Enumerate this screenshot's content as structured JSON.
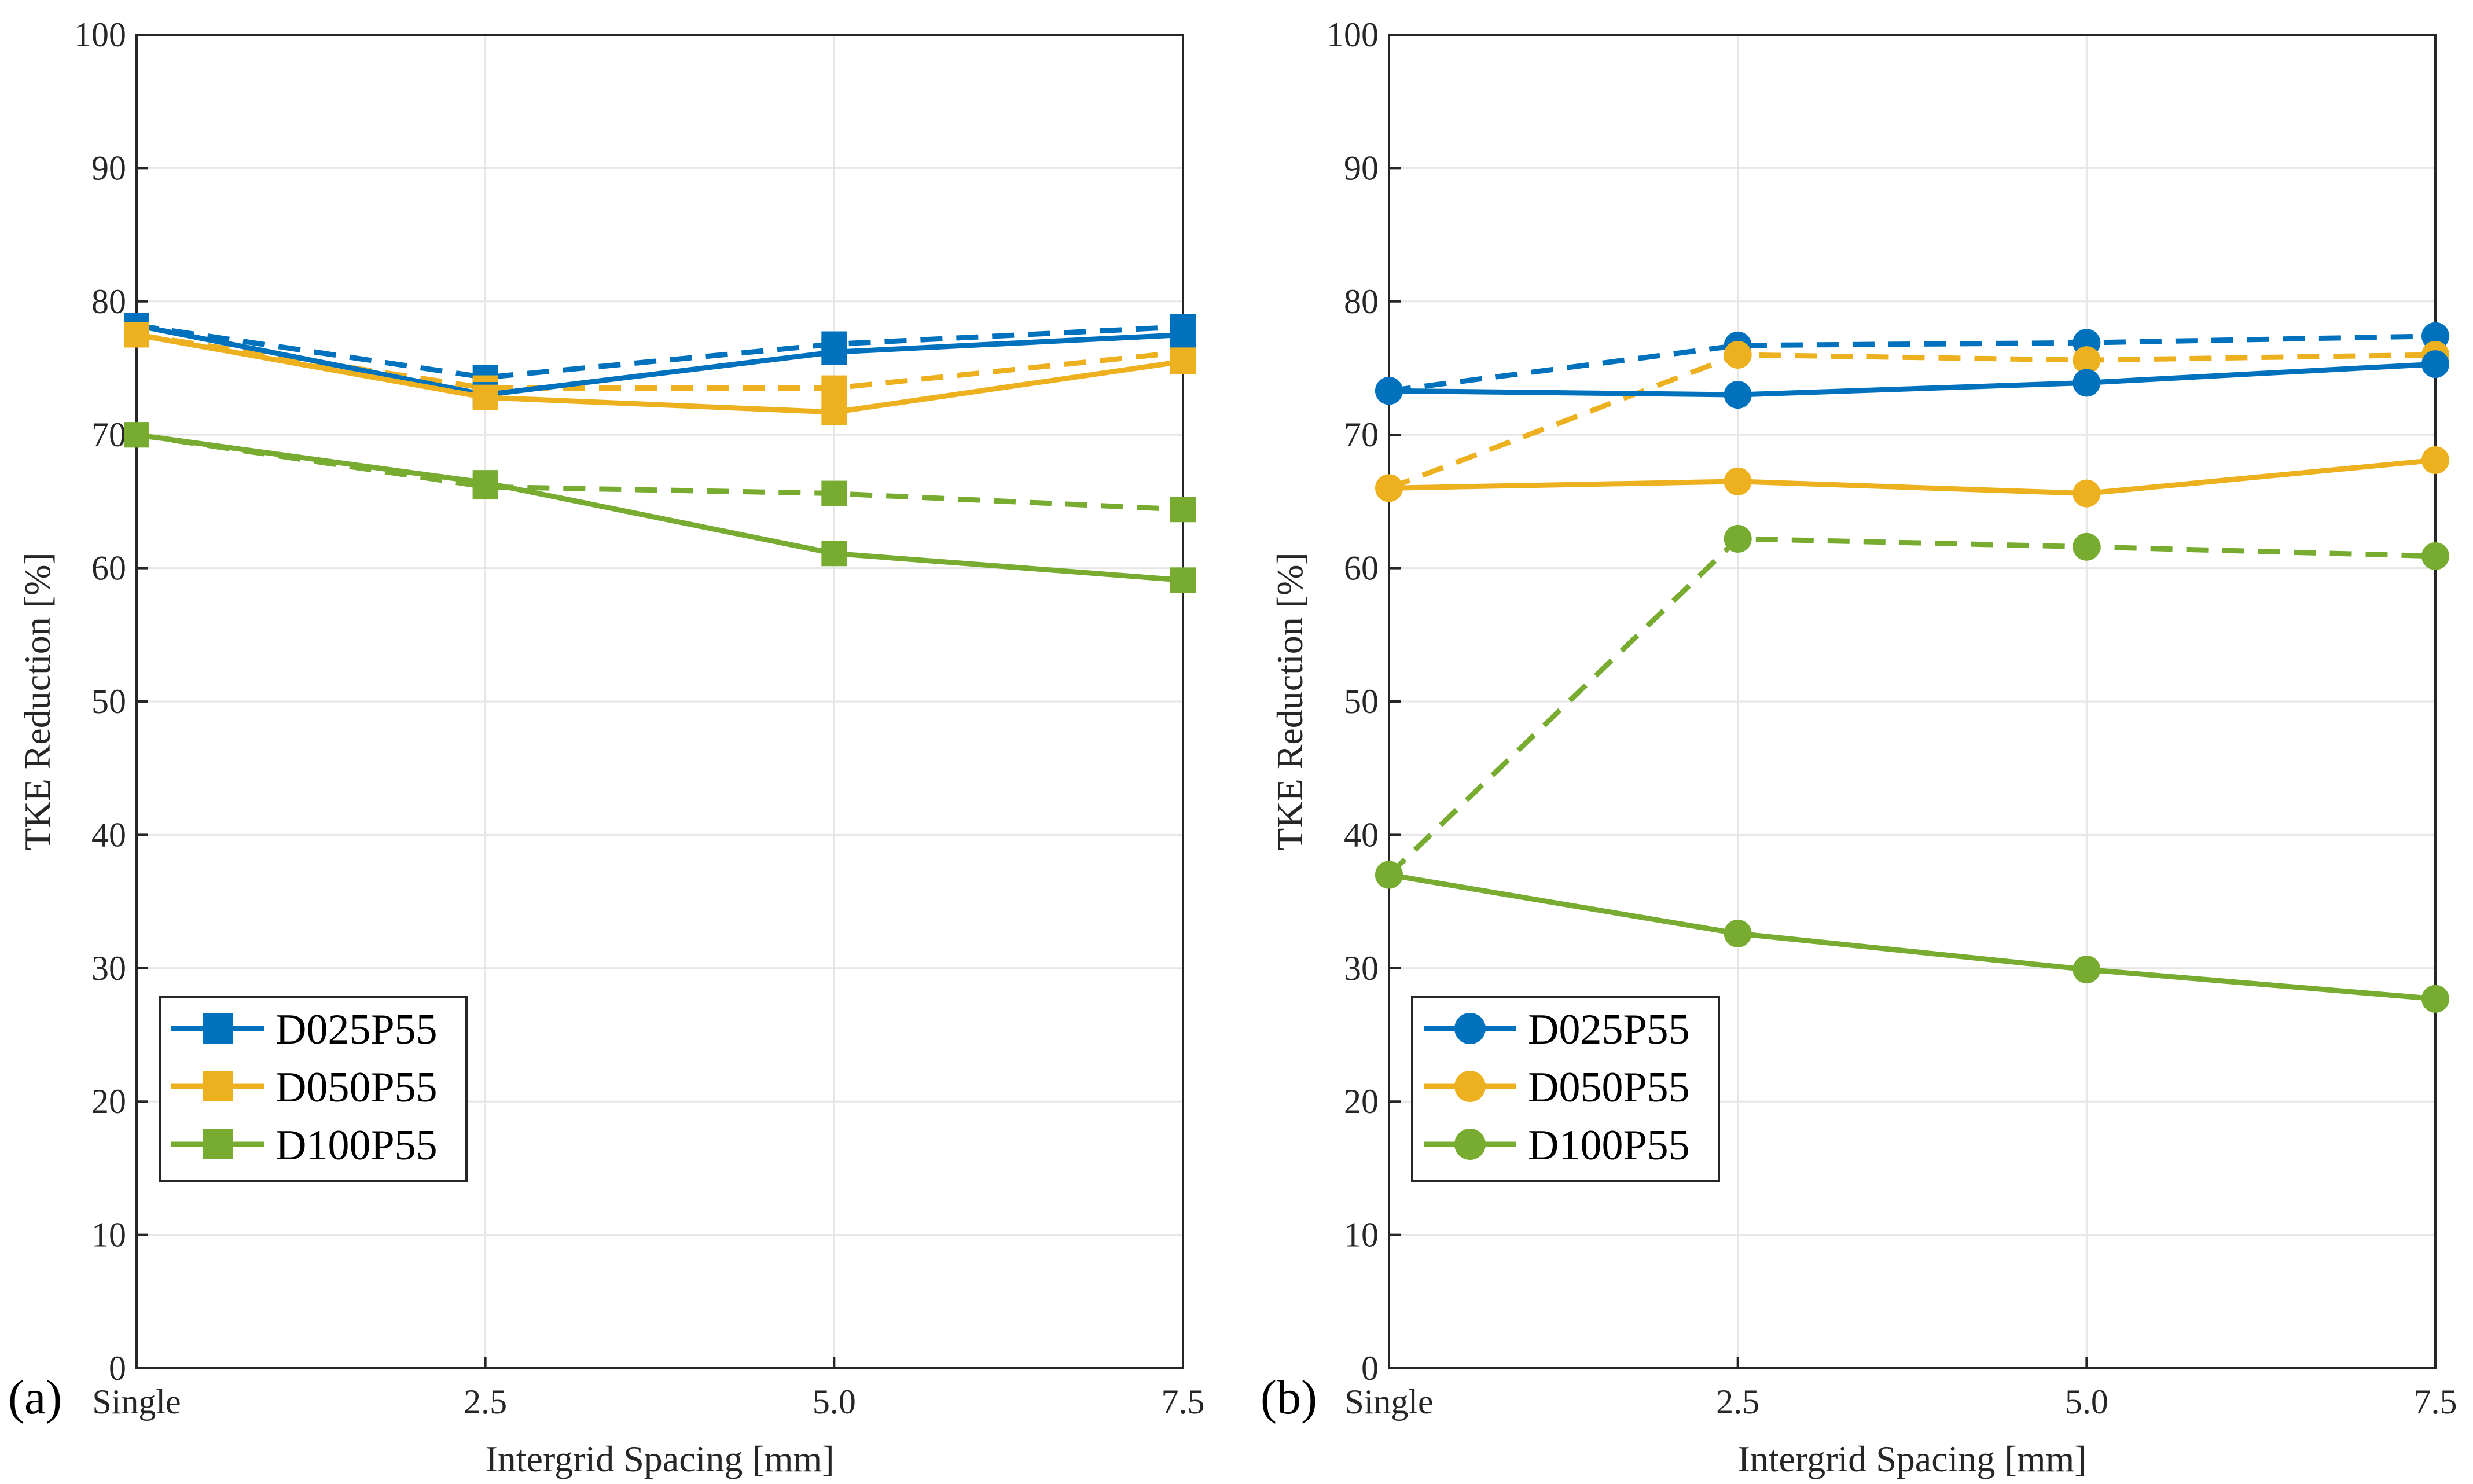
{
  "chart_data": [
    {
      "type": "line",
      "panel_label": "(a)",
      "marker": "square",
      "xlabel": "Intergrid Spacing [mm]",
      "ylabel": "TKE Reduction [%]",
      "categories": [
        "Single",
        "2.5",
        "5.0",
        "7.5"
      ],
      "ylim": [
        0,
        100
      ],
      "yticks": [
        "0",
        "10",
        "20",
        "30",
        "40",
        "50",
        "60",
        "70",
        "80",
        "90",
        "100"
      ],
      "grid": true,
      "legend_position": "bottom-left",
      "series": [
        {
          "name": "D025P55",
          "color": "#0072BD",
          "style": "solid",
          "values": [
            78.2,
            73.0,
            76.2,
            77.5
          ]
        },
        {
          "name": "D025P55",
          "color": "#0072BD",
          "style": "dashed",
          "values": [
            78.2,
            74.3,
            76.8,
            78.1
          ]
        },
        {
          "name": "D050P55",
          "color": "#EDB120",
          "style": "solid",
          "values": [
            77.5,
            72.8,
            71.7,
            75.5
          ]
        },
        {
          "name": "D050P55",
          "color": "#EDB120",
          "style": "dashed",
          "values": [
            77.5,
            73.5,
            73.5,
            76.2
          ]
        },
        {
          "name": "D100P55",
          "color": "#77AC30",
          "style": "solid",
          "values": [
            70.0,
            66.4,
            61.1,
            59.1
          ]
        },
        {
          "name": "D100P55",
          "color": "#77AC30",
          "style": "dashed",
          "values": [
            70.0,
            66.1,
            65.6,
            64.4
          ]
        }
      ],
      "legend": [
        {
          "label": "D025P55",
          "color": "#0072BD"
        },
        {
          "label": "D050P55",
          "color": "#EDB120"
        },
        {
          "label": "D100P55",
          "color": "#77AC30"
        }
      ]
    },
    {
      "type": "line",
      "panel_label": "(b)",
      "marker": "circle",
      "xlabel": "Intergrid Spacing [mm]",
      "ylabel": "TKE Reduction [%]",
      "categories": [
        "Single",
        "2.5",
        "5.0",
        "7.5"
      ],
      "ylim": [
        0,
        100
      ],
      "yticks": [
        "0",
        "10",
        "20",
        "30",
        "40",
        "50",
        "60",
        "70",
        "80",
        "90",
        "100"
      ],
      "grid": true,
      "legend_position": "bottom-left",
      "series": [
        {
          "name": "D025P55",
          "color": "#0072BD",
          "style": "solid",
          "values": [
            73.3,
            73.0,
            73.9,
            75.3
          ]
        },
        {
          "name": "D025P55",
          "color": "#0072BD",
          "style": "dashed",
          "values": [
            73.3,
            76.7,
            76.9,
            77.4
          ]
        },
        {
          "name": "D050P55",
          "color": "#EDB120",
          "style": "solid",
          "values": [
            66.0,
            66.5,
            65.6,
            68.1
          ]
        },
        {
          "name": "D050P55",
          "color": "#EDB120",
          "style": "dashed",
          "values": [
            66.0,
            76.0,
            75.6,
            76.0
          ]
        },
        {
          "name": "D100P55",
          "color": "#77AC30",
          "style": "solid",
          "values": [
            37.0,
            32.6,
            29.9,
            27.7
          ]
        },
        {
          "name": "D100P55",
          "color": "#77AC30",
          "style": "dashed",
          "values": [
            37.0,
            62.2,
            61.6,
            60.9
          ]
        }
      ],
      "legend": [
        {
          "label": "D025P55",
          "color": "#0072BD"
        },
        {
          "label": "D050P55",
          "color": "#EDB120"
        },
        {
          "label": "D100P55",
          "color": "#77AC30"
        }
      ]
    }
  ]
}
